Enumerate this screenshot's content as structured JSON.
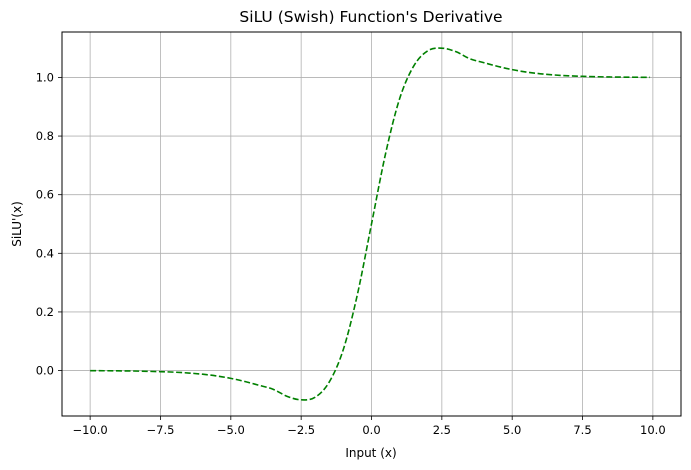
{
  "chart_data": {
    "type": "line",
    "title": "SiLU (Swish) Function's Derivative",
    "xlabel": "Input (x)",
    "ylabel": "SiLU'(x)",
    "xlim": [
      -11.0,
      11.0
    ],
    "ylim": [
      -0.155,
      1.155
    ],
    "grid": true,
    "x_ticks": [
      -10.0,
      -7.5,
      -5.0,
      -2.5,
      0.0,
      2.5,
      5.0,
      7.5,
      10.0
    ],
    "x_tick_labels": [
      "−10.0",
      "−7.5",
      "−5.0",
      "−2.5",
      "0.0",
      "2.5",
      "5.0",
      "7.5",
      "10.0"
    ],
    "y_ticks": [
      0.0,
      0.2,
      0.4,
      0.6,
      0.8,
      1.0
    ],
    "y_tick_labels": [
      "0.0",
      "0.2",
      "0.4",
      "0.6",
      "0.8",
      "1.0"
    ],
    "series": [
      {
        "color": "#008000",
        "line_style": "dashed",
        "x": [
          -10.0,
          -9.5,
          -9.0,
          -8.5,
          -8.0,
          -7.5,
          -7.0,
          -6.5,
          -6.0,
          -5.5,
          -5.0,
          -4.5,
          -4.0,
          -3.5,
          -3.0,
          -2.5,
          -2.0,
          -1.5,
          -1.0,
          -0.5,
          0.0,
          0.5,
          1.0,
          1.5,
          2.0,
          2.5,
          3.0,
          3.5,
          4.0,
          4.5,
          5.0,
          5.5,
          6.0,
          6.5,
          7.0,
          7.5,
          8.0,
          8.5,
          9.0,
          9.5,
          9.9
        ],
        "y": [
          -0.0004,
          -0.0006,
          -0.001,
          -0.0015,
          -0.0024,
          -0.0037,
          -0.0055,
          -0.0084,
          -0.0125,
          -0.0184,
          -0.0266,
          -0.0374,
          -0.0502,
          -0.0637,
          -0.0879,
          -0.0999,
          -0.0908,
          -0.0387,
          0.0723,
          0.26,
          0.5,
          0.74,
          0.9277,
          1.0387,
          1.0908,
          1.0999,
          1.0879,
          1.0637,
          1.0502,
          1.0374,
          1.0266,
          1.0184,
          1.0125,
          1.0084,
          1.0055,
          1.0037,
          1.0024,
          1.0015,
          1.001,
          1.0006,
          1.0004
        ]
      }
    ]
  }
}
